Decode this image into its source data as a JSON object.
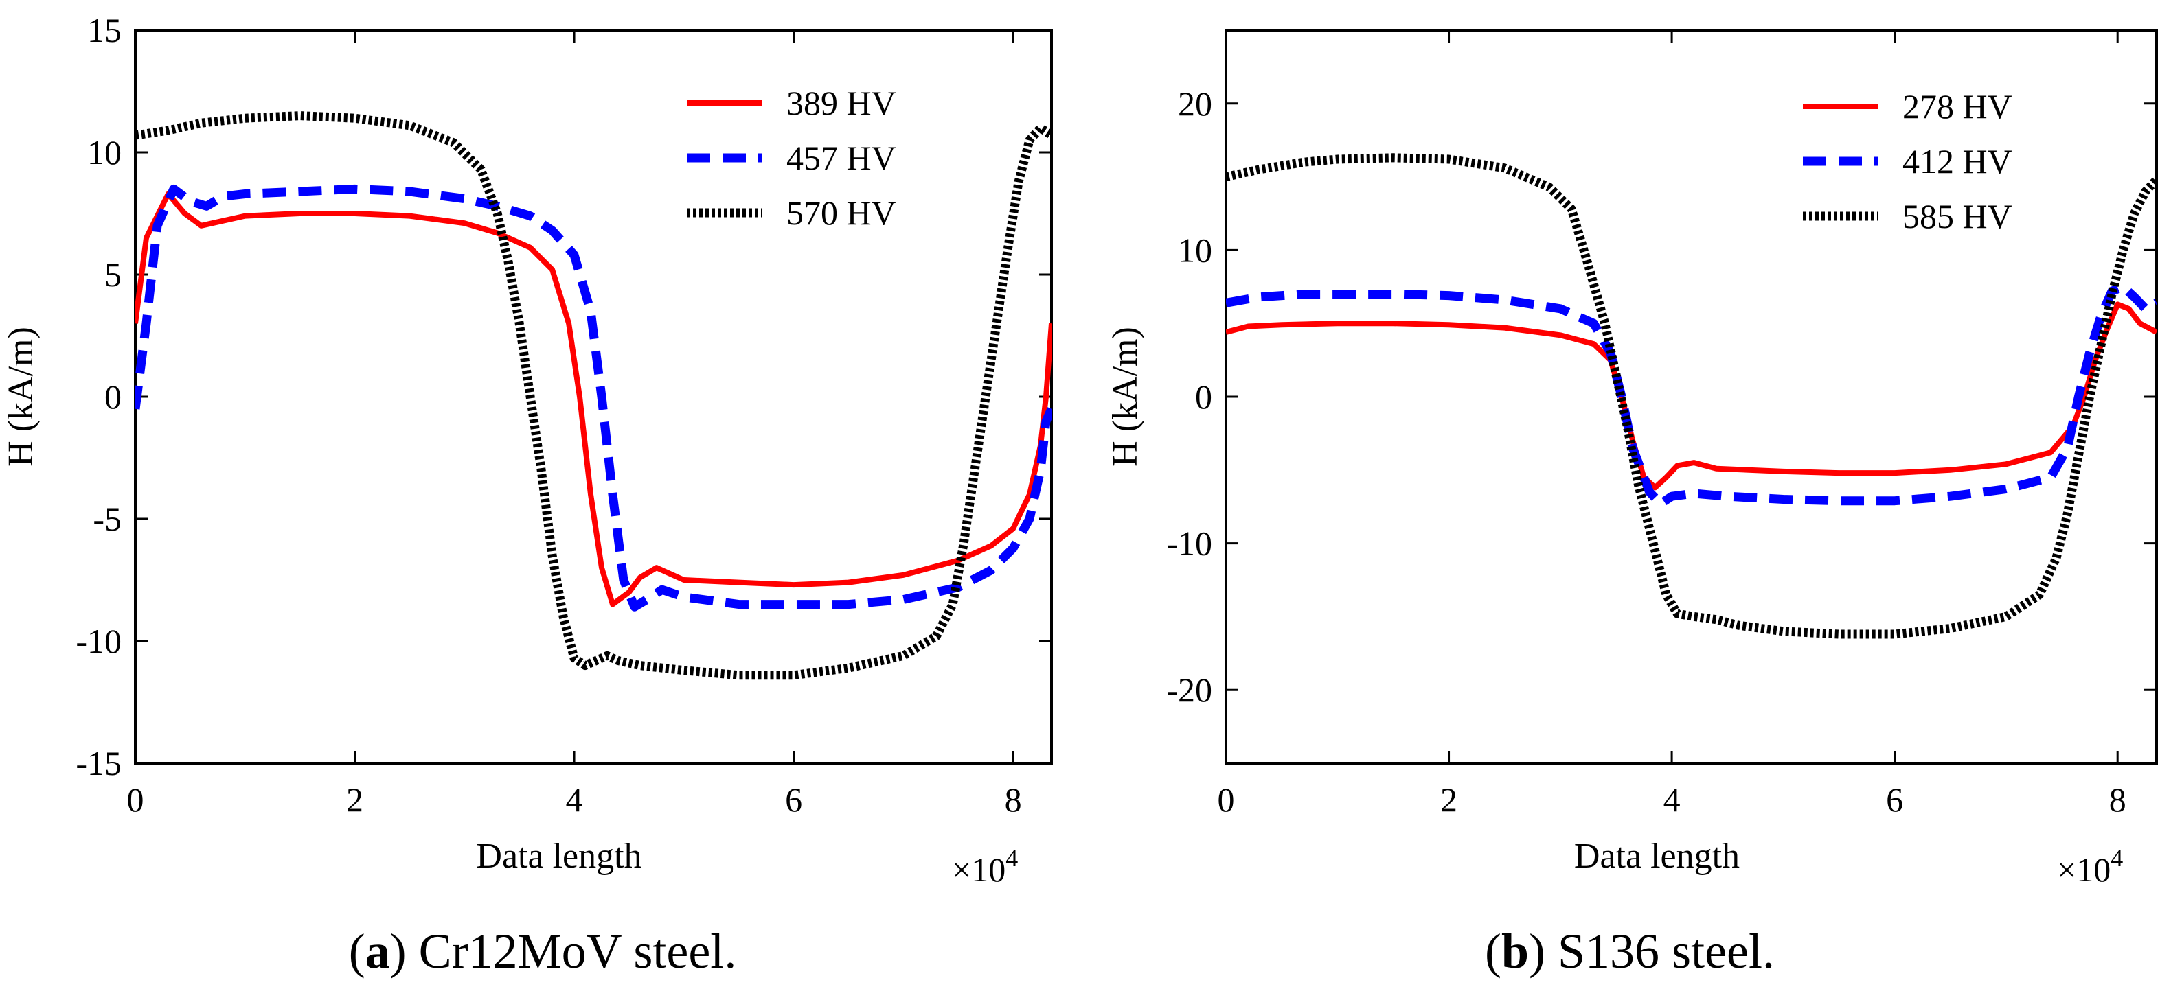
{
  "chart_data": [
    {
      "type": "line",
      "caption_label": "a",
      "caption_text": "Cr12MoV steel.",
      "xlabel": "Data length",
      "ylabel": "H (kA/m)",
      "x_multiplier": "×10",
      "x_exponent": "4",
      "xlim": [
        0,
        8.35
      ],
      "ylim": [
        -15,
        15
      ],
      "xticks": [
        0,
        2,
        4,
        6,
        8
      ],
      "yticks": [
        -15,
        -10,
        -5,
        0,
        5,
        10,
        15
      ],
      "legend_position": "top-right",
      "series": [
        {
          "name": "389 HV",
          "color": "#ff0000",
          "style": "solid",
          "points": [
            [
              0,
              3
            ],
            [
              0.1,
              6.5
            ],
            [
              0.3,
              8.3
            ],
            [
              0.45,
              7.5
            ],
            [
              0.6,
              7
            ],
            [
              0.8,
              7.2
            ],
            [
              1,
              7.4
            ],
            [
              1.5,
              7.5
            ],
            [
              2,
              7.5
            ],
            [
              2.5,
              7.4
            ],
            [
              3,
              7.1
            ],
            [
              3.3,
              6.7
            ],
            [
              3.6,
              6.1
            ],
            [
              3.8,
              5.2
            ],
            [
              3.95,
              3
            ],
            [
              4.05,
              0
            ],
            [
              4.15,
              -4
            ],
            [
              4.25,
              -7
            ],
            [
              4.35,
              -8.5
            ],
            [
              4.5,
              -8
            ],
            [
              4.6,
              -7.4
            ],
            [
              4.75,
              -7
            ],
            [
              4.9,
              -7.3
            ],
            [
              5,
              -7.5
            ],
            [
              5.5,
              -7.6
            ],
            [
              6,
              -7.7
            ],
            [
              6.5,
              -7.6
            ],
            [
              7,
              -7.3
            ],
            [
              7.5,
              -6.7
            ],
            [
              7.8,
              -6.1
            ],
            [
              8,
              -5.4
            ],
            [
              8.15,
              -4
            ],
            [
              8.25,
              -2
            ],
            [
              8.3,
              0
            ],
            [
              8.35,
              3
            ]
          ]
        },
        {
          "name": "457 HV",
          "color": "#0000ff",
          "style": "dashed",
          "points": [
            [
              0,
              -0.5
            ],
            [
              0.1,
              3
            ],
            [
              0.2,
              7
            ],
            [
              0.35,
              8.5
            ],
            [
              0.5,
              8
            ],
            [
              0.65,
              7.8
            ],
            [
              0.8,
              8.2
            ],
            [
              1,
              8.3
            ],
            [
              1.5,
              8.4
            ],
            [
              2,
              8.5
            ],
            [
              2.5,
              8.4
            ],
            [
              3,
              8.1
            ],
            [
              3.3,
              7.8
            ],
            [
              3.6,
              7.4
            ],
            [
              3.8,
              6.8
            ],
            [
              4,
              5.8
            ],
            [
              4.15,
              3.5
            ],
            [
              4.25,
              0
            ],
            [
              4.35,
              -4
            ],
            [
              4.45,
              -7.5
            ],
            [
              4.55,
              -8.6
            ],
            [
              4.7,
              -8.2
            ],
            [
              4.8,
              -7.9
            ],
            [
              5,
              -8.2
            ],
            [
              5.5,
              -8.5
            ],
            [
              6,
              -8.5
            ],
            [
              6.5,
              -8.5
            ],
            [
              7,
              -8.3
            ],
            [
              7.5,
              -7.8
            ],
            [
              7.8,
              -7.1
            ],
            [
              8,
              -6.2
            ],
            [
              8.15,
              -5
            ],
            [
              8.25,
              -3
            ],
            [
              8.3,
              -1
            ],
            [
              8.35,
              -0.5
            ]
          ]
        },
        {
          "name": "570 HV",
          "color": "#000000",
          "style": "dotted",
          "points": [
            [
              0,
              10.7
            ],
            [
              0.3,
              10.9
            ],
            [
              0.6,
              11.2
            ],
            [
              1,
              11.4
            ],
            [
              1.5,
              11.5
            ],
            [
              2,
              11.4
            ],
            [
              2.5,
              11.1
            ],
            [
              2.9,
              10.4
            ],
            [
              3.15,
              9.3
            ],
            [
              3.3,
              7.5
            ],
            [
              3.4,
              5.5
            ],
            [
              3.5,
              3
            ],
            [
              3.6,
              0
            ],
            [
              3.7,
              -3
            ],
            [
              3.8,
              -6.5
            ],
            [
              3.9,
              -9
            ],
            [
              4,
              -10.7
            ],
            [
              4.1,
              -11
            ],
            [
              4.2,
              -10.8
            ],
            [
              4.3,
              -10.6
            ],
            [
              4.4,
              -10.8
            ],
            [
              4.6,
              -11
            ],
            [
              5,
              -11.2
            ],
            [
              5.5,
              -11.4
            ],
            [
              6,
              -11.4
            ],
            [
              6.5,
              -11.1
            ],
            [
              7,
              -10.6
            ],
            [
              7.3,
              -9.8
            ],
            [
              7.45,
              -8.5
            ],
            [
              7.55,
              -6
            ],
            [
              7.65,
              -3
            ],
            [
              7.75,
              0
            ],
            [
              7.85,
              3
            ],
            [
              7.95,
              6
            ],
            [
              8.05,
              8.8
            ],
            [
              8.15,
              10.5
            ],
            [
              8.25,
              11
            ],
            [
              8.35,
              10.7
            ]
          ]
        }
      ]
    },
    {
      "type": "line",
      "caption_label": "b",
      "caption_text": "S136 steel.",
      "xlabel": "Data length",
      "ylabel": "H (kA/m)",
      "x_multiplier": "×10",
      "x_exponent": "4",
      "xlim": [
        0,
        8.35
      ],
      "ylim": [
        -25,
        25
      ],
      "xticks": [
        0,
        2,
        4,
        6,
        8
      ],
      "yticks": [
        -20,
        -10,
        0,
        10,
        20
      ],
      "legend_position": "top-right",
      "series": [
        {
          "name": "278 HV",
          "color": "#ff0000",
          "style": "solid",
          "points": [
            [
              0,
              4.4
            ],
            [
              0.2,
              4.8
            ],
            [
              0.5,
              4.9
            ],
            [
              1,
              5
            ],
            [
              1.5,
              5
            ],
            [
              2,
              4.9
            ],
            [
              2.5,
              4.7
            ],
            [
              3,
              4.2
            ],
            [
              3.3,
              3.6
            ],
            [
              3.45,
              2.5
            ],
            [
              3.55,
              0
            ],
            [
              3.65,
              -3
            ],
            [
              3.75,
              -5.5
            ],
            [
              3.85,
              -6.2
            ],
            [
              3.95,
              -5.5
            ],
            [
              4.05,
              -4.7
            ],
            [
              4.2,
              -4.5
            ],
            [
              4.4,
              -4.9
            ],
            [
              5,
              -5.1
            ],
            [
              5.5,
              -5.2
            ],
            [
              6,
              -5.2
            ],
            [
              6.5,
              -5
            ],
            [
              7,
              -4.6
            ],
            [
              7.4,
              -3.8
            ],
            [
              7.6,
              -2
            ],
            [
              7.7,
              0
            ],
            [
              7.8,
              2.5
            ],
            [
              7.9,
              4.5
            ],
            [
              8,
              6.3
            ],
            [
              8.1,
              6
            ],
            [
              8.2,
              5
            ],
            [
              8.35,
              4.4
            ]
          ]
        },
        {
          "name": "412 HV",
          "color": "#0000ff",
          "style": "dashed",
          "points": [
            [
              0,
              6.4
            ],
            [
              0.3,
              6.8
            ],
            [
              0.7,
              7
            ],
            [
              1,
              7
            ],
            [
              1.5,
              7
            ],
            [
              2,
              6.9
            ],
            [
              2.5,
              6.6
            ],
            [
              3,
              6
            ],
            [
              3.3,
              5
            ],
            [
              3.45,
              3
            ],
            [
              3.55,
              0
            ],
            [
              3.65,
              -3.5
            ],
            [
              3.8,
              -6.5
            ],
            [
              3.9,
              -7.3
            ],
            [
              4,
              -6.8
            ],
            [
              4.2,
              -6.6
            ],
            [
              4.5,
              -6.8
            ],
            [
              5,
              -7
            ],
            [
              5.5,
              -7.1
            ],
            [
              6,
              -7.1
            ],
            [
              6.5,
              -6.8
            ],
            [
              7,
              -6.3
            ],
            [
              7.4,
              -5.5
            ],
            [
              7.55,
              -3.5
            ],
            [
              7.65,
              0
            ],
            [
              7.75,
              3
            ],
            [
              7.85,
              5.5
            ],
            [
              7.95,
              7.2
            ],
            [
              8.05,
              7.5
            ],
            [
              8.15,
              6.8
            ],
            [
              8.25,
              6
            ],
            [
              8.35,
              6.4
            ]
          ]
        },
        {
          "name": "585 HV",
          "color": "#000000",
          "style": "dotted",
          "points": [
            [
              0,
              15
            ],
            [
              0.3,
              15.5
            ],
            [
              0.7,
              16
            ],
            [
              1,
              16.2
            ],
            [
              1.5,
              16.3
            ],
            [
              2,
              16.2
            ],
            [
              2.5,
              15.6
            ],
            [
              2.9,
              14.3
            ],
            [
              3.1,
              12.8
            ],
            [
              3.25,
              9
            ],
            [
              3.4,
              5
            ],
            [
              3.5,
              1.5
            ],
            [
              3.6,
              -2
            ],
            [
              3.7,
              -6
            ],
            [
              3.85,
              -10.5
            ],
            [
              3.95,
              -13.5
            ],
            [
              4.05,
              -14.8
            ],
            [
              4.2,
              -15
            ],
            [
              4.4,
              -15.2
            ],
            [
              4.6,
              -15.6
            ],
            [
              5,
              -16
            ],
            [
              5.5,
              -16.2
            ],
            [
              6,
              -16.2
            ],
            [
              6.5,
              -15.8
            ],
            [
              7,
              -15
            ],
            [
              7.3,
              -13.5
            ],
            [
              7.45,
              -11
            ],
            [
              7.55,
              -8
            ],
            [
              7.65,
              -4
            ],
            [
              7.75,
              0
            ],
            [
              7.85,
              3.5
            ],
            [
              7.95,
              7
            ],
            [
              8.05,
              10
            ],
            [
              8.15,
              12.5
            ],
            [
              8.25,
              14
            ],
            [
              8.35,
              14.8
            ]
          ]
        }
      ]
    }
  ]
}
